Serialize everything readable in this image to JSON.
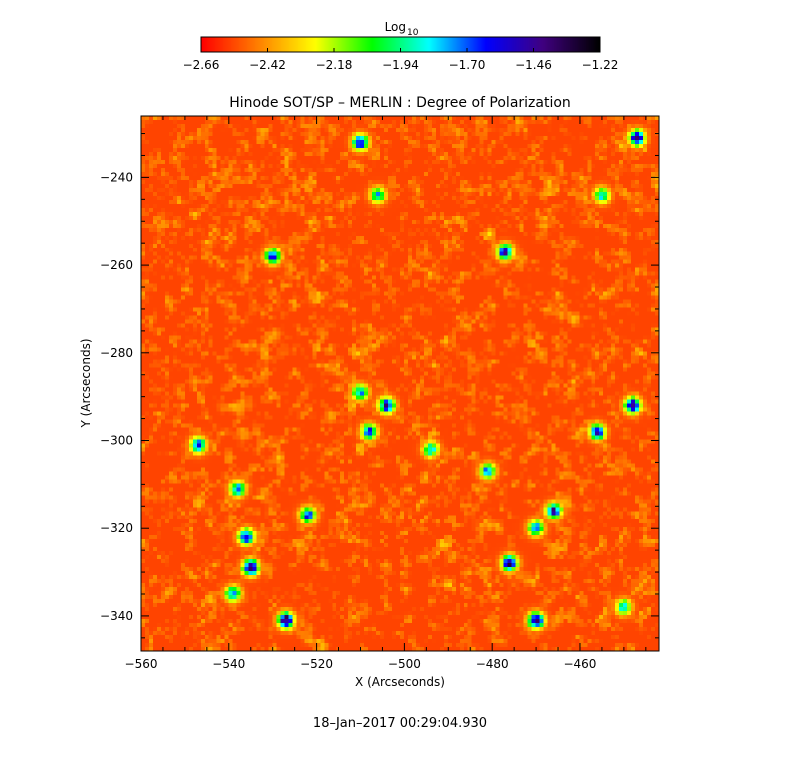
{
  "chart_data": {
    "type": "heatmap",
    "title": "Hinode SOT/SP – MERLIN : Degree of Polarization",
    "xlabel": "X (Arcseconds)",
    "ylabel": "Y (Arcseconds)",
    "xlim": [
      -560,
      -442
    ],
    "ylim": [
      -348,
      -226
    ],
    "x_ticks": [
      -560,
      -540,
      -520,
      -500,
      -480,
      -460
    ],
    "y_ticks": [
      -240,
      -260,
      -280,
      -300,
      -320,
      -340
    ],
    "colorbar": {
      "title_base": "Log",
      "title_sub": "10",
      "range": [
        -2.66,
        -1.22
      ],
      "tick_values": [
        -2.66,
        -2.42,
        -2.18,
        -1.94,
        -1.7,
        -1.46,
        -1.22
      ],
      "tick_labels": [
        "−2.66",
        "−2.42",
        "−2.18",
        "−1.94",
        "−1.70",
        "−1.46",
        "−1.22"
      ],
      "colormap": [
        "#ff0000",
        "#ff8000",
        "#ffff00",
        "#00ff00",
        "#00ffff",
        "#0000ff",
        "#400080",
        "#000000"
      ]
    },
    "high_polarization_features": [
      {
        "x": -535,
        "y": -329,
        "value": -1.3
      },
      {
        "x": -527,
        "y": -341,
        "value": -1.3
      },
      {
        "x": -536,
        "y": -322,
        "value": -1.5
      },
      {
        "x": -522,
        "y": -317,
        "value": -1.6
      },
      {
        "x": -470,
        "y": -341,
        "value": -1.3
      },
      {
        "x": -476,
        "y": -328,
        "value": -1.4
      },
      {
        "x": -466,
        "y": -316,
        "value": -1.5
      },
      {
        "x": -456,
        "y": -298,
        "value": -1.5
      },
      {
        "x": -448,
        "y": -292,
        "value": -1.4
      },
      {
        "x": -504,
        "y": -292,
        "value": -1.5
      },
      {
        "x": -508,
        "y": -298,
        "value": -1.6
      },
      {
        "x": -510,
        "y": -289,
        "value": -1.7
      },
      {
        "x": -547,
        "y": -301,
        "value": -1.6
      },
      {
        "x": -530,
        "y": -258,
        "value": -1.6
      },
      {
        "x": -477,
        "y": -257,
        "value": -1.5
      },
      {
        "x": -510,
        "y": -232,
        "value": -1.5
      },
      {
        "x": -447,
        "y": -231,
        "value": -1.4
      },
      {
        "x": -455,
        "y": -244,
        "value": -1.8
      },
      {
        "x": -538,
        "y": -311,
        "value": -1.7
      },
      {
        "x": -481,
        "y": -307,
        "value": -1.7
      },
      {
        "x": -494,
        "y": -302,
        "value": -1.8
      },
      {
        "x": -506,
        "y": -244,
        "value": -1.8
      },
      {
        "x": -470,
        "y": -320,
        "value": -1.7
      },
      {
        "x": -450,
        "y": -338,
        "value": -1.8
      },
      {
        "x": -539,
        "y": -335,
        "value": -1.7
      }
    ],
    "background_level": -2.55
  },
  "footer": {
    "timestamp": "18–Jan–2017 00:29:04.930"
  }
}
